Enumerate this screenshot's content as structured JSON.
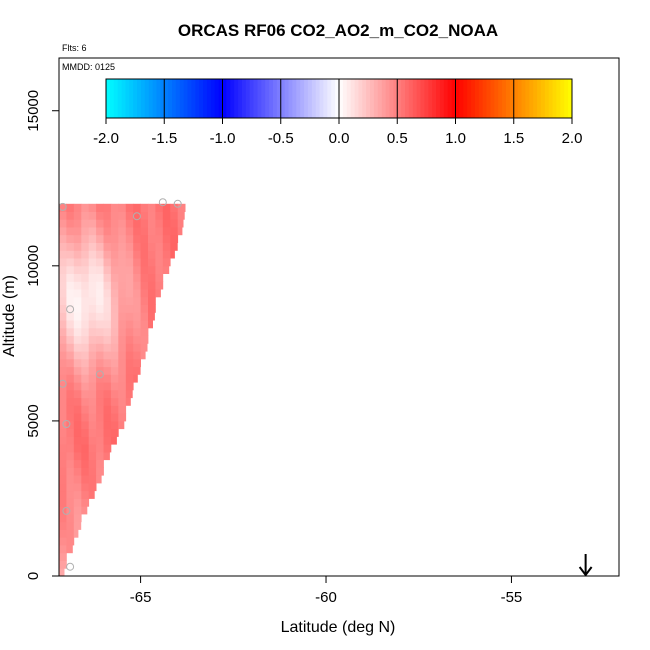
{
  "chart_data": {
    "type": "heatmap",
    "title": "ORCAS RF06 CO2_AO2_m_CO2_NOAA",
    "subtitle_flights": "Flts: 6",
    "subtitle_date": "MMDD: 0125",
    "xlabel": "Latitude (deg N)",
    "ylabel": "Altitude (m)",
    "xlim": [
      -67.2,
      -52.1
    ],
    "ylim": [
      0,
      16700
    ],
    "x_ticks": [
      -65,
      -60,
      -55
    ],
    "x_tick_labels": [
      "-65",
      "-60",
      "-55"
    ],
    "y_ticks": [
      0,
      5000,
      10000,
      15000
    ],
    "y_tick_labels": [
      "0",
      "5000",
      "10000",
      "15000"
    ],
    "colorbar": {
      "range": [
        -2.0,
        2.0
      ],
      "ticks": [
        -2.0,
        -1.5,
        -1.0,
        -0.5,
        0.0,
        0.5,
        1.0,
        1.5,
        2.0
      ],
      "tick_labels": [
        "-2.0",
        "-1.5",
        "-1.0",
        "-0.5",
        "0.0",
        "0.5",
        "1.0",
        "1.5",
        "2.0"
      ],
      "colors": [
        "#00ffff",
        "#0000ff",
        "#ffffff",
        "#ff0000",
        "#ffff00"
      ]
    },
    "field": {
      "description": "curtain of CO2 difference values; fills region between latitude -67.2 and an upper-right boundary",
      "cell_lat_width": 0.2,
      "cell_alt_height": 250,
      "boundary": [
        [
          -67.2,
          0
        ],
        [
          -66.9,
          1000
        ],
        [
          -66.6,
          2000
        ],
        [
          -66.2,
          3000
        ],
        [
          -65.9,
          4000
        ],
        [
          -65.5,
          5000
        ],
        [
          -65.3,
          6000
        ],
        [
          -65.0,
          7000
        ],
        [
          -64.8,
          8000
        ],
        [
          -64.6,
          9000
        ],
        [
          -64.3,
          10000
        ],
        [
          -64.0,
          11000
        ],
        [
          -63.9,
          11800
        ]
      ],
      "top_altitude": 12000,
      "typical_value": 0.55,
      "low_core": {
        "lat": -66.6,
        "alt": 8800,
        "value": 0.05
      }
    },
    "flight_points": [
      {
        "lat": -67.1,
        "alt": 11900
      },
      {
        "lat": -66.9,
        "alt": 8600
      },
      {
        "lat": -67.1,
        "alt": 6200
      },
      {
        "lat": -67.0,
        "alt": 4900
      },
      {
        "lat": -65.1,
        "alt": 11600
      },
      {
        "lat": -64.4,
        "alt": 12050
      },
      {
        "lat": -64.0,
        "alt": 12000
      },
      {
        "lat": -66.1,
        "alt": 6500
      },
      {
        "lat": -66.9,
        "alt": 300
      },
      {
        "lat": -67.0,
        "alt": 2100
      }
    ],
    "arrow_marker": {
      "lat": -53.0,
      "direction": "down"
    }
  }
}
